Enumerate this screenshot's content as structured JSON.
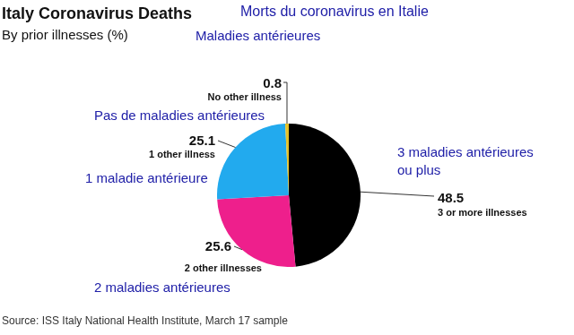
{
  "chart_data": {
    "type": "pie",
    "title": "Italy Coronavirus Deaths",
    "title_fr": "Morts du coronavirus en Italie",
    "subtitle": "By prior illnesses (%)",
    "subtitle_fr": "Maladies antérieures",
    "source": "Source: ISS Italy National Health Institute, March 17 sample",
    "categories": [
      "3 or more illnesses",
      "2 other illnesses",
      "1 other illness",
      "No other illness"
    ],
    "categories_fr": [
      [
        "3 maladies antérieures",
        "ou plus"
      ],
      [
        "2 maladies antérieures"
      ],
      [
        "1 maladie antérieure"
      ],
      [
        "Pas de maladies antérieures"
      ]
    ],
    "values": [
      48.5,
      25.6,
      25.1,
      0.8
    ],
    "colors": [
      "#000000",
      "#ee1f8c",
      "#22aaee",
      "#e6c229"
    ],
    "data_labels": true
  }
}
